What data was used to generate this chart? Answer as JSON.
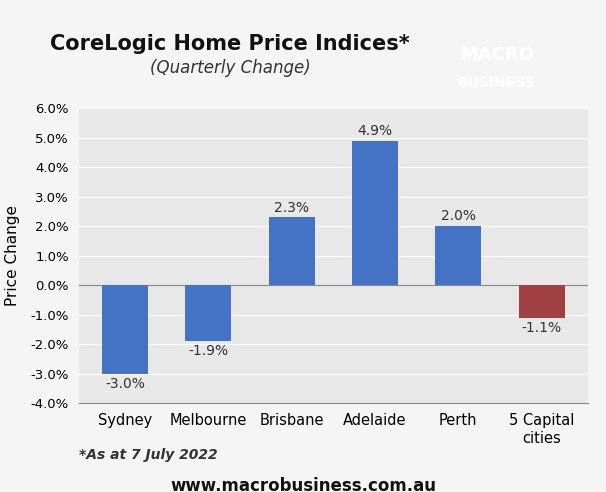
{
  "categories": [
    "Sydney",
    "Melbourne",
    "Brisbane",
    "Adelaide",
    "Perth",
    "5 Capital\ncities"
  ],
  "values": [
    -3.0,
    -1.9,
    2.3,
    4.9,
    2.0,
    -1.1
  ],
  "bar_colors": [
    "#4472c4",
    "#4472c4",
    "#4472c4",
    "#4472c4",
    "#4472c4",
    "#a04040"
  ],
  "title_line1": "CoreLogic Home Price Indices*",
  "title_line2": "(Quarterly Change)",
  "ylabel": "Price Change",
  "ylim": [
    -4.0,
    6.0
  ],
  "yticks": [
    -4.0,
    -3.0,
    -2.0,
    -1.0,
    0.0,
    1.0,
    2.0,
    3.0,
    4.0,
    5.0,
    6.0
  ],
  "data_labels": [
    "-3.0%",
    "-1.9%",
    "2.3%",
    "4.9%",
    "2.0%",
    "-1.1%"
  ],
  "footnote": "*As at 7 July 2022",
  "website": "www.macrobusiness.com.au",
  "background_color": "#e8e8e8",
  "plot_bg_color": "#e8e8e8",
  "macro_box_color": "#cc2200",
  "macro_text": "MACRO\nBUSINESS"
}
